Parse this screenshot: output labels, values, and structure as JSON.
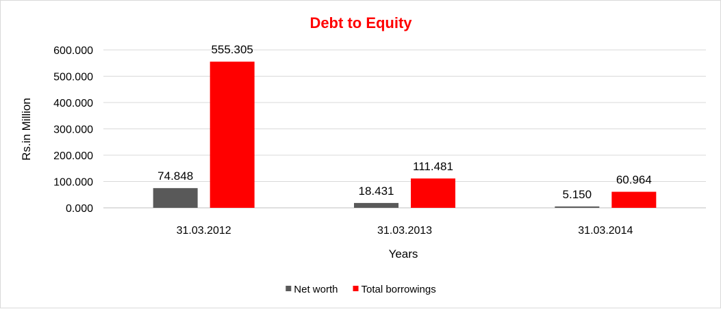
{
  "chart_data": {
    "type": "bar",
    "title": "Debt to Equity",
    "title_color": "#ff0000",
    "xlabel": "Years",
    "ylabel": "Rs.in Million",
    "categories": [
      "31.03.2012",
      "31.03.2013",
      "31.03.2014"
    ],
    "series": [
      {
        "name": "Net worth",
        "color": "#595959",
        "values": [
          74.848,
          18.431,
          5.15
        ],
        "value_labels": [
          "74.848",
          "18.431",
          "5.150"
        ]
      },
      {
        "name": "Total borrowings",
        "color": "#ff0000",
        "values": [
          555.305,
          111.481,
          60.964
        ],
        "value_labels": [
          "555.305",
          "111.481",
          "60.964"
        ]
      }
    ],
    "ylim": [
      0,
      600
    ],
    "yticks": [
      0,
      100,
      200,
      300,
      400,
      500,
      600
    ],
    "ytick_labels": [
      "0.000",
      "100.000",
      "200.000",
      "300.000",
      "400.000",
      "500.000",
      "600.000"
    ],
    "grid": true,
    "legend_position": "bottom"
  }
}
